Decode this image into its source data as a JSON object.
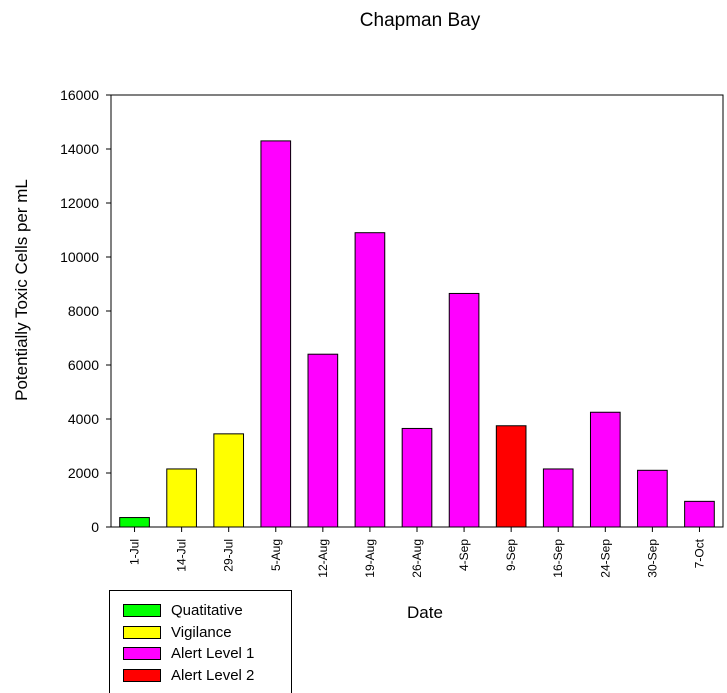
{
  "chart_data": {
    "type": "bar",
    "title": "Chapman Bay",
    "xlabel": "Date",
    "ylabel": "Potentially Toxic Cells per mL",
    "ylim": [
      0,
      16000
    ],
    "yticks": [
      0,
      2000,
      4000,
      6000,
      8000,
      10000,
      12000,
      14000,
      16000
    ],
    "categories": [
      "1-Jul",
      "14-Jul",
      "29-Jul",
      "5-Aug",
      "12-Aug",
      "19-Aug",
      "26-Aug",
      "4-Sep",
      "9-Sep",
      "16-Sep",
      "24-Sep",
      "30-Sep",
      "7-Oct"
    ],
    "values": [
      350,
      2150,
      3450,
      14300,
      6400,
      10900,
      3650,
      8650,
      3750,
      2150,
      4250,
      2100,
      950
    ],
    "levels": [
      "Quatitative",
      "Vigilance",
      "Vigilance",
      "Alert Level 1",
      "Alert Level 1",
      "Alert Level 1",
      "Alert Level 1",
      "Alert Level 1",
      "Alert Level 2",
      "Alert Level 1",
      "Alert Level 1",
      "Alert Level 1",
      "Alert Level 1"
    ],
    "grid": false,
    "legend_position": "bottom-left, below plot",
    "legend": [
      {
        "label": "Quatitative",
        "color": "#00ff00"
      },
      {
        "label": "Vigilance",
        "color": "#ffff00"
      },
      {
        "label": "Alert Level 1",
        "color": "#ff00ff"
      },
      {
        "label": "Alert Level 2",
        "color": "#ff0000"
      }
    ]
  }
}
